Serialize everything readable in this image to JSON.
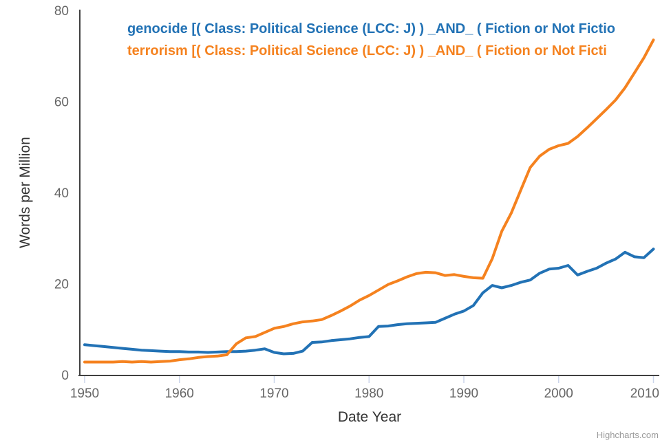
{
  "credit": "Highcharts.com",
  "chart_data": {
    "type": "line",
    "title": "",
    "xlabel": "Date Year",
    "ylabel": "Words per Million",
    "x_start": 1950,
    "x_step": 1,
    "x_ticks": [
      1950,
      1960,
      1970,
      1980,
      1990,
      2000,
      2010
    ],
    "y_ticks": [
      0,
      20,
      40,
      60,
      80
    ],
    "xlim": [
      1949.5,
      2010.6
    ],
    "ylim": [
      0,
      80
    ],
    "grid": false,
    "legend_position": "top",
    "axis_line_color": "#404040",
    "tick_mark_color": "#ccd6eb",
    "tick_label_color": "#666666",
    "series": [
      {
        "name": "genocide",
        "label": "genocide [( Class: Political Science (LCC: J) ) _AND_ ( Fiction or Not Fictio",
        "color": "#2272b5",
        "values": [
          6.6,
          6.4,
          6.2,
          6.0,
          5.8,
          5.6,
          5.4,
          5.3,
          5.2,
          5.1,
          5.1,
          5.0,
          5.0,
          4.9,
          5.0,
          5.1,
          5.1,
          5.2,
          5.4,
          5.7,
          4.9,
          4.6,
          4.7,
          5.2,
          7.1,
          7.2,
          7.5,
          7.7,
          7.9,
          8.2,
          8.4,
          10.6,
          10.7,
          11.0,
          11.2,
          11.3,
          11.4,
          11.5,
          12.4,
          13.3,
          14.0,
          15.2,
          18.0,
          19.6,
          19.1,
          19.6,
          20.3,
          20.8,
          22.3,
          23.2,
          23.4,
          24.0,
          21.9,
          22.7,
          23.4,
          24.5,
          25.4,
          26.9,
          25.9,
          25.7,
          27.6
        ]
      },
      {
        "name": "terrorism",
        "label": "terrorism [( Class: Political Science (LCC: J) ) _AND_ ( Fiction or Not Ficti",
        "color": "#f5821f",
        "values": [
          2.8,
          2.8,
          2.8,
          2.8,
          2.9,
          2.8,
          2.9,
          2.8,
          2.9,
          3.0,
          3.3,
          3.5,
          3.8,
          4.0,
          4.1,
          4.4,
          6.8,
          8.1,
          8.4,
          9.3,
          10.2,
          10.6,
          11.2,
          11.6,
          11.8,
          12.1,
          13.0,
          14.0,
          15.1,
          16.4,
          17.4,
          18.6,
          19.8,
          20.6,
          21.5,
          22.2,
          22.5,
          22.4,
          21.8,
          22.0,
          21.6,
          21.3,
          21.2,
          25.5,
          31.5,
          35.5,
          40.5,
          45.5,
          48.0,
          49.5,
          50.3,
          50.8,
          52.3,
          54.2,
          56.2,
          58.2,
          60.3,
          63.0,
          66.3,
          69.6,
          73.5
        ]
      }
    ]
  }
}
